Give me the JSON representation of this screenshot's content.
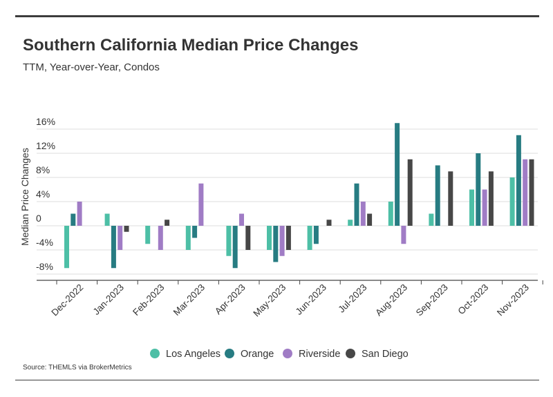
{
  "title": "Southern California Median Price Changes",
  "subtitle": "TTM, Year-over-Year, Condos",
  "source": "Source:  THEMLS via BrokerMetrics",
  "chart_data": {
    "type": "bar",
    "ylabel": "Median Price Changes",
    "xlabel": "",
    "ylim": [
      -9,
      18
    ],
    "yticks": [
      -8,
      -4,
      0,
      4,
      8,
      12,
      16
    ],
    "ytick_labels": [
      "-8%",
      "-4%",
      "0",
      "4%",
      "8%",
      "12%",
      "16%"
    ],
    "grid": true,
    "legend_position": "bottom",
    "categories": [
      "Dec-2022",
      "Jan-2023",
      "Feb-2023",
      "Mar-2023",
      "Apr-2023",
      "May-2023",
      "Jun-2023",
      "Jul-2023",
      "Aug-2023",
      "Sep-2023",
      "Oct-2023",
      "Nov-2023"
    ],
    "series": [
      {
        "name": "Los Angeles",
        "color": "#4dbfa6",
        "values": [
          -7,
          2,
          -3,
          -4,
          -5,
          -4,
          -4,
          1,
          4,
          2,
          6,
          8
        ]
      },
      {
        "name": "Orange",
        "color": "#277c82",
        "values": [
          2,
          -7,
          0,
          -2,
          -7,
          -6,
          -3,
          7,
          17,
          10,
          12,
          15
        ]
      },
      {
        "name": "Riverside",
        "color": "#a07cc5",
        "values": [
          4,
          -4,
          -4,
          7,
          2,
          -5,
          0,
          4,
          -3,
          0,
          6,
          11
        ]
      },
      {
        "name": "San Diego",
        "color": "#474747",
        "values": [
          0,
          -1,
          1,
          0,
          -4,
          -4,
          1,
          2,
          11,
          9,
          9,
          11
        ]
      }
    ]
  }
}
